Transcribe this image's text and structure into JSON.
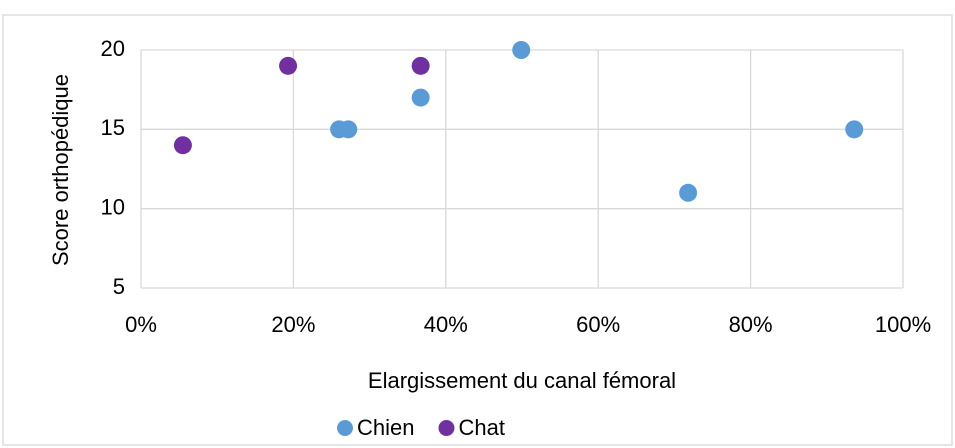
{
  "chart_data": {
    "type": "scatter",
    "x_label": "Elargissement du canal fémoral",
    "y_label": "Score orthopédique",
    "series": [
      {
        "name": "Chien",
        "color": "#5b9bd5",
        "x": [
          26,
          27.2,
          36.7,
          49.9,
          71.8,
          93.6
        ],
        "values": [
          15,
          15,
          17,
          20,
          11,
          15
        ]
      },
      {
        "name": "Chat",
        "color": "#7030a0",
        "x": [
          5.5,
          19.3,
          36.7
        ],
        "values": [
          14,
          19,
          19
        ]
      }
    ],
    "xlim": [
      0,
      100
    ],
    "xticks": [
      {
        "value": 0,
        "label": "0%"
      },
      {
        "value": 20,
        "label": "20%"
      },
      {
        "value": 40,
        "label": "40%"
      },
      {
        "value": 60,
        "label": "60%"
      },
      {
        "value": 80,
        "label": "80%"
      },
      {
        "value": 100,
        "label": "100%"
      }
    ],
    "ylim": [
      5,
      20
    ],
    "yticks": [
      5,
      10,
      15,
      20
    ],
    "grid": true,
    "legend": "bottom"
  }
}
